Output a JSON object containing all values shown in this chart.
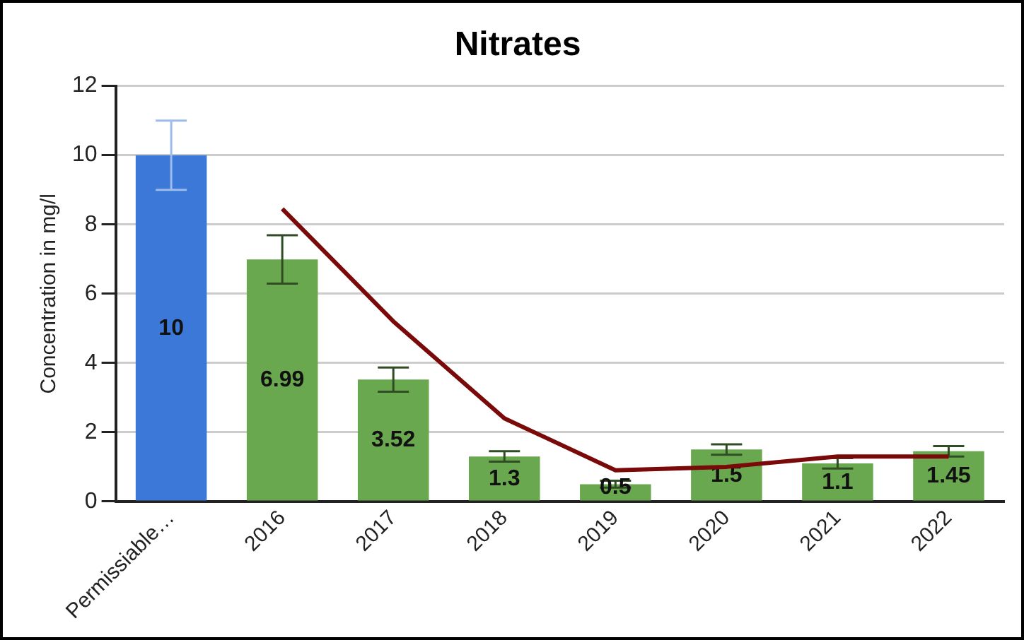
{
  "chart_data": {
    "type": "bar",
    "title": "Nitrates",
    "ylabel": "Concentration in mg/l",
    "categories": [
      "Permissiable…",
      "2016",
      "2017",
      "2018",
      "2019",
      "2020",
      "2021",
      "2022"
    ],
    "series": [
      {
        "colors": [
          "#3b78d8",
          "#6aa84f",
          "#6aa84f",
          "#6aa84f",
          "#6aa84f",
          "#6aa84f",
          "#6aa84f",
          "#6aa84f"
        ],
        "values": [
          10,
          6.99,
          3.52,
          1.3,
          0.5,
          1.5,
          1.1,
          1.45
        ],
        "errors": [
          1,
          0.7,
          0.35,
          0.15,
          0.1,
          0.15,
          0.15,
          0.15
        ],
        "value_labels": [
          "10",
          "6.99",
          "3.52",
          "1.3",
          "0.5",
          "1.5",
          "1.1",
          "1.45"
        ]
      },
      {
        "type": "line",
        "color": "#7a0a0a",
        "values": [
          null,
          8.45,
          5.2,
          2.4,
          0.9,
          1.0,
          1.3,
          1.3
        ]
      }
    ],
    "ylim": [
      0,
      12
    ],
    "yticks": [
      0,
      2,
      4,
      6,
      8,
      10,
      12
    ],
    "grid": "y",
    "marker": "none"
  }
}
